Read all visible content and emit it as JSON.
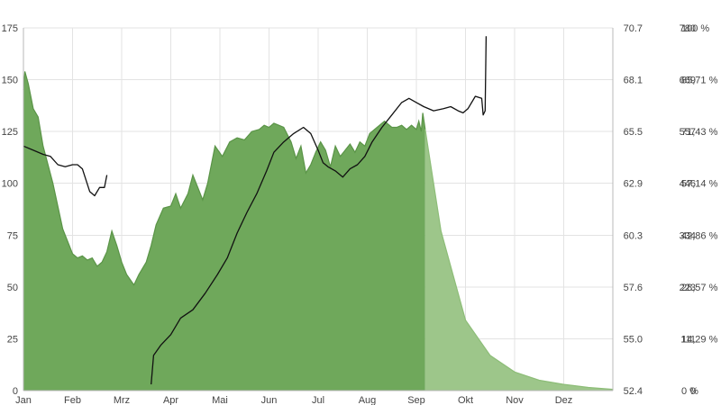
{
  "chart_data": {
    "type": "area",
    "title": "",
    "x_ticks": [
      "Jan",
      "Feb",
      "Mrz",
      "Apr",
      "Mai",
      "Jun",
      "Jul",
      "Aug",
      "Sep",
      "Okt",
      "Nov",
      "Dez"
    ],
    "xlim": [
      0,
      12
    ],
    "left_axis": {
      "ticks": [
        "0",
        "25",
        "50",
        "75",
        "100",
        "125",
        "150",
        "175"
      ],
      "ylim": [
        0,
        175
      ]
    },
    "right_axis_1": {
      "ticks": [
        "52.4",
        "55.0",
        "57.6",
        "60.3",
        "62.9",
        "65.5",
        "68.1",
        "70.7"
      ],
      "ylim": [
        52.4,
        70.7
      ]
    },
    "right_axis_2": {
      "ticks": [
        "0",
        "111",
        "223",
        "334",
        "446",
        "557",
        "669",
        "780"
      ],
      "ylim": [
        0,
        780
      ]
    },
    "right_axis_3": {
      "ticks": [
        "0 %",
        "14,29 %",
        "28,57 %",
        "42,86 %",
        "57,14 %",
        "71,43 %",
        "85,71 %",
        "100 %"
      ],
      "ylim": [
        0,
        100
      ]
    },
    "grid": true,
    "legend": "none",
    "series": [
      {
        "kind": "area",
        "axis": "left",
        "color": "#6fa85b",
        "points": [
          [
            0.0,
            145
          ],
          [
            0.03,
            154
          ],
          [
            0.1,
            148
          ],
          [
            0.2,
            136
          ],
          [
            0.3,
            132
          ],
          [
            0.4,
            118
          ],
          [
            0.6,
            100
          ],
          [
            0.8,
            78
          ],
          [
            1.0,
            66
          ],
          [
            1.1,
            64
          ],
          [
            1.2,
            65
          ],
          [
            1.3,
            63
          ],
          [
            1.4,
            64
          ],
          [
            1.5,
            60
          ],
          [
            1.6,
            62
          ],
          [
            1.7,
            67
          ],
          [
            1.8,
            77
          ],
          [
            1.9,
            70
          ],
          [
            2.0,
            62
          ],
          [
            2.1,
            56
          ],
          [
            2.25,
            51
          ],
          [
            2.35,
            56
          ],
          [
            2.5,
            62
          ],
          [
            2.6,
            70
          ],
          [
            2.7,
            80
          ],
          [
            2.85,
            88
          ],
          [
            3.0,
            89
          ],
          [
            3.1,
            95
          ],
          [
            3.2,
            88
          ],
          [
            3.35,
            95
          ],
          [
            3.45,
            104
          ],
          [
            3.55,
            98
          ],
          [
            3.65,
            92
          ],
          [
            3.75,
            100
          ],
          [
            3.9,
            118
          ],
          [
            4.05,
            113
          ],
          [
            4.2,
            120
          ],
          [
            4.35,
            122
          ],
          [
            4.5,
            121
          ],
          [
            4.65,
            125
          ],
          [
            4.8,
            126
          ],
          [
            4.9,
            128
          ],
          [
            5.0,
            127
          ],
          [
            5.1,
            129
          ],
          [
            5.2,
            128
          ],
          [
            5.3,
            127
          ],
          [
            5.45,
            120
          ],
          [
            5.55,
            112
          ],
          [
            5.65,
            118
          ],
          [
            5.75,
            105
          ],
          [
            5.85,
            109
          ],
          [
            5.95,
            115
          ],
          [
            6.05,
            120
          ],
          [
            6.15,
            116
          ],
          [
            6.25,
            108
          ],
          [
            6.35,
            118
          ],
          [
            6.45,
            113
          ],
          [
            6.55,
            116
          ],
          [
            6.65,
            119
          ],
          [
            6.75,
            115
          ],
          [
            6.85,
            120
          ],
          [
            6.95,
            118
          ],
          [
            7.05,
            124
          ],
          [
            7.2,
            127
          ],
          [
            7.35,
            130
          ],
          [
            7.5,
            127
          ],
          [
            7.6,
            127
          ],
          [
            7.7,
            128
          ],
          [
            7.8,
            126
          ],
          [
            7.9,
            128
          ],
          [
            8.0,
            126
          ],
          [
            8.05,
            130
          ],
          [
            8.1,
            125
          ],
          [
            8.13,
            134
          ],
          [
            8.18,
            126
          ]
        ]
      },
      {
        "kind": "area_projection",
        "axis": "left",
        "color": "#9dc68a",
        "points": [
          [
            8.18,
            126
          ],
          [
            8.5,
            77
          ],
          [
            9.0,
            34
          ],
          [
            9.5,
            17
          ],
          [
            10.0,
            9
          ],
          [
            10.5,
            5
          ],
          [
            11.0,
            3
          ],
          [
            11.5,
            1.5
          ],
          [
            12.0,
            0.6
          ]
        ]
      },
      {
        "kind": "line",
        "axis": "left",
        "color": "#111111",
        "points": [
          [
            0.0,
            118
          ],
          [
            0.2,
            116
          ],
          [
            0.4,
            114
          ],
          [
            0.55,
            113
          ],
          [
            0.7,
            109
          ],
          [
            0.85,
            108
          ],
          [
            1.0,
            109
          ],
          [
            1.1,
            109
          ],
          [
            1.2,
            107
          ],
          [
            1.35,
            96
          ],
          [
            1.45,
            94
          ],
          [
            1.55,
            98
          ],
          [
            1.65,
            98
          ],
          [
            1.7,
            104
          ]
        ]
      },
      {
        "kind": "line",
        "axis": "left",
        "color": "#111111",
        "points": [
          [
            2.6,
            3
          ],
          [
            2.65,
            17
          ],
          [
            2.8,
            22
          ],
          [
            3.0,
            27
          ],
          [
            3.2,
            35
          ],
          [
            3.45,
            39
          ],
          [
            3.7,
            47
          ],
          [
            3.95,
            56
          ],
          [
            4.15,
            64
          ],
          [
            4.35,
            76
          ],
          [
            4.55,
            86
          ],
          [
            4.75,
            95
          ],
          [
            4.95,
            106
          ],
          [
            5.1,
            115
          ],
          [
            5.3,
            120
          ],
          [
            5.5,
            124
          ],
          [
            5.7,
            127
          ],
          [
            5.85,
            124
          ],
          [
            6.0,
            116
          ],
          [
            6.1,
            110
          ],
          [
            6.2,
            108
          ],
          [
            6.35,
            106
          ],
          [
            6.5,
            103
          ],
          [
            6.65,
            107
          ],
          [
            6.8,
            109
          ],
          [
            6.95,
            113
          ],
          [
            7.1,
            120
          ],
          [
            7.3,
            127
          ],
          [
            7.5,
            133
          ],
          [
            7.7,
            139
          ],
          [
            7.85,
            141
          ],
          [
            8.0,
            139
          ],
          [
            8.15,
            137
          ],
          [
            8.35,
            135
          ],
          [
            8.55,
            136
          ],
          [
            8.7,
            137
          ],
          [
            8.85,
            135
          ],
          [
            8.95,
            134
          ],
          [
            9.05,
            136
          ],
          [
            9.2,
            142
          ],
          [
            9.33,
            141
          ],
          [
            9.36,
            133
          ],
          [
            9.4,
            135
          ],
          [
            9.42,
            171
          ]
        ]
      }
    ]
  }
}
